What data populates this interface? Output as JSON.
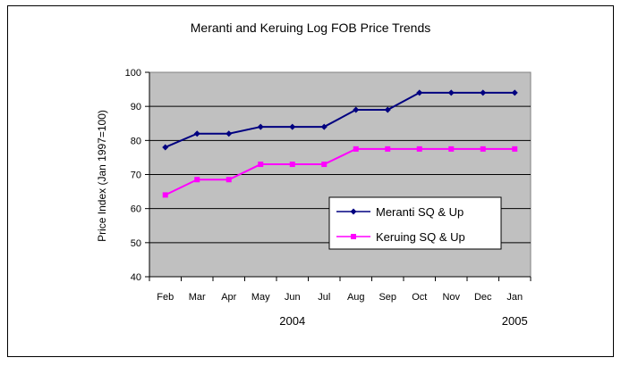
{
  "chart_data": {
    "type": "line",
    "title": "Meranti and Keruing Log FOB Price Trends",
    "ylabel": "Price Index (Jan 1997=100)",
    "categories": [
      "Feb",
      "Mar",
      "Apr",
      "May",
      "Jun",
      "Jul",
      "Aug",
      "Sep",
      "Oct",
      "Nov",
      "Dec",
      "Jan"
    ],
    "year_labels": [
      {
        "text": "2004",
        "category": "Jun"
      },
      {
        "text": "2005",
        "category": "Jan"
      }
    ],
    "ylim": [
      40,
      100
    ],
    "yticks": [
      40,
      50,
      60,
      70,
      80,
      90,
      100
    ],
    "grid": true,
    "legend_position": "lower-right inside plot",
    "plot_background": "#c0c0c0",
    "series": [
      {
        "name": "Meranti SQ & Up",
        "color": "#000080",
        "marker": "diamond",
        "values": [
          78,
          82,
          82,
          84,
          84,
          84,
          89,
          89,
          94,
          94,
          94,
          94
        ]
      },
      {
        "name": "Keruing SQ & Up",
        "color": "#ff00ff",
        "marker": "square",
        "values": [
          64,
          68.5,
          68.5,
          73,
          73,
          73,
          77.5,
          77.5,
          77.5,
          77.5,
          77.5,
          77.5
        ]
      }
    ]
  }
}
